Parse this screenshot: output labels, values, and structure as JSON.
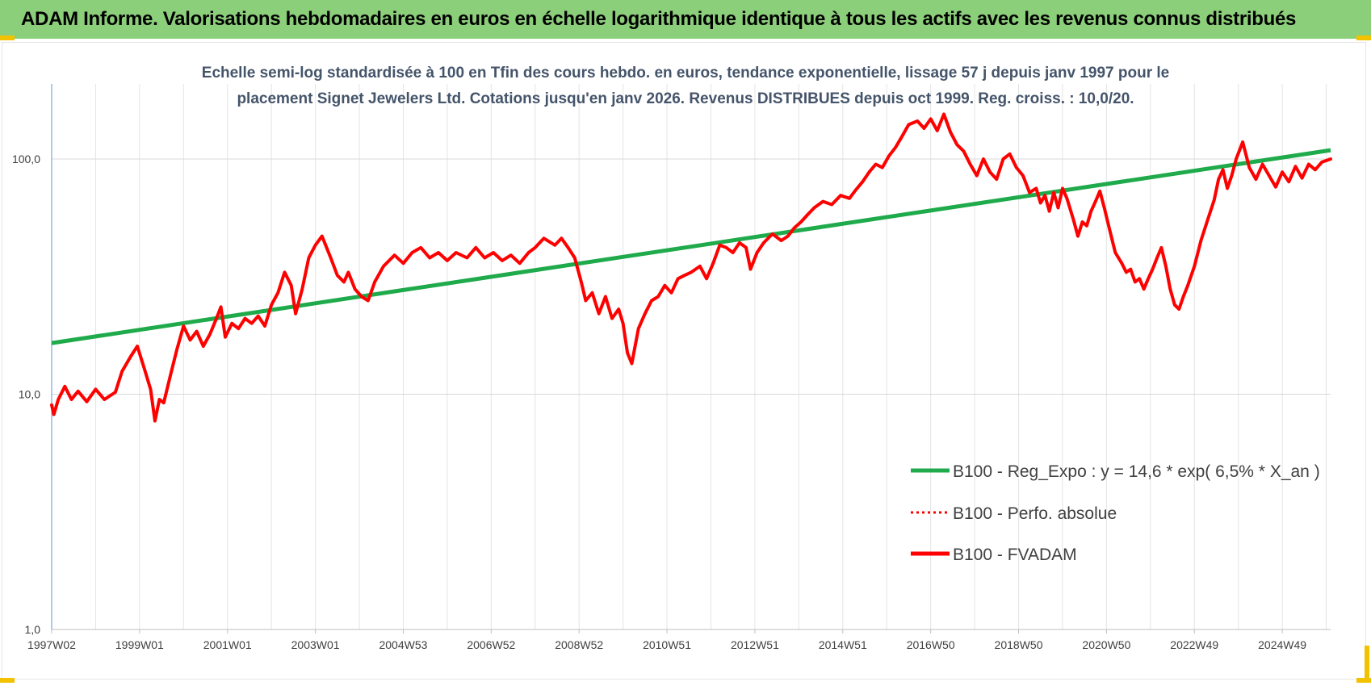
{
  "banner": {
    "title": "ADAM Informe. Valorisations hebdomadaires en euros en échelle logarithmique identique à tous les actifs avec les revenus connus distribués",
    "background": "#8ccf7a"
  },
  "chart_data": {
    "type": "line",
    "title_line1": "Echelle semi-log standardisée à 100 en Tfin des cours hebdo. en euros, tendance exponentielle, lissage 57 j depuis janv 1997 pour le",
    "title_line2": "placement Signet Jewelers Ltd. Cotations jusqu'en janv 2026. Revenus DISTRIBUES depuis oct 1999. Reg. croiss. : 10,0/20.",
    "y_scale": "log",
    "ylim": [
      1,
      200
    ],
    "y_ticks": [
      {
        "value": 1,
        "label": "1,0"
      },
      {
        "value": 10,
        "label": "10,0"
      },
      {
        "value": 100,
        "label": "100,0"
      }
    ],
    "x_range": [
      1997.0,
      2026.1
    ],
    "x_ticks": [
      {
        "year": 1997.0,
        "label": "1997W02"
      },
      {
        "year": 1999.0,
        "label": "1999W01"
      },
      {
        "year": 2001.0,
        "label": "2001W01"
      },
      {
        "year": 2003.0,
        "label": "2003W01"
      },
      {
        "year": 2005.0,
        "label": "2004W53"
      },
      {
        "year": 2007.0,
        "label": "2006W52"
      },
      {
        "year": 2009.0,
        "label": "2008W52"
      },
      {
        "year": 2011.0,
        "label": "2010W51"
      },
      {
        "year": 2013.0,
        "label": "2012W51"
      },
      {
        "year": 2015.0,
        "label": "2014W51"
      },
      {
        "year": 2017.0,
        "label": "2016W50"
      },
      {
        "year": 2019.0,
        "label": "2018W50"
      },
      {
        "year": 2021.0,
        "label": "2020W50"
      },
      {
        "year": 2023.0,
        "label": "2022W49"
      },
      {
        "year": 2025.0,
        "label": "2024W49"
      }
    ],
    "grid": "vertical and horizontal",
    "legend_position": "bottom-right",
    "series": [
      {
        "name": "B100 - Reg_Expo : y = 14,6 * exp( 6,5% *  X_an )",
        "style": "solid",
        "color": "#1faa4b",
        "points": [
          [
            1997.0,
            16.5
          ],
          [
            2026.1,
            109
          ]
        ]
      },
      {
        "name": "B100 - Perfo. absolue",
        "style": "dotted",
        "color": "#ff0000",
        "points": []
      },
      {
        "name": "B100 - FVADAM",
        "style": "solid",
        "color": "#ff0000",
        "points": [
          [
            1997.0,
            9.0
          ],
          [
            1997.05,
            8.2
          ],
          [
            1997.15,
            9.5
          ],
          [
            1997.3,
            10.8
          ],
          [
            1997.45,
            9.5
          ],
          [
            1997.6,
            10.3
          ],
          [
            1997.8,
            9.3
          ],
          [
            1998.0,
            10.5
          ],
          [
            1998.2,
            9.5
          ],
          [
            1998.45,
            10.2
          ],
          [
            1998.6,
            12.5
          ],
          [
            1998.8,
            14.5
          ],
          [
            1998.95,
            16.0
          ],
          [
            1999.1,
            13.0
          ],
          [
            1999.25,
            10.5
          ],
          [
            1999.35,
            7.7
          ],
          [
            1999.45,
            9.5
          ],
          [
            1999.55,
            9.2
          ],
          [
            1999.7,
            12.0
          ],
          [
            1999.85,
            15.5
          ],
          [
            2000.0,
            19.5
          ],
          [
            2000.15,
            17.0
          ],
          [
            2000.3,
            18.5
          ],
          [
            2000.45,
            16.0
          ],
          [
            2000.6,
            18.0
          ],
          [
            2000.75,
            21.0
          ],
          [
            2000.85,
            23.5
          ],
          [
            2000.95,
            17.5
          ],
          [
            2001.1,
            20.0
          ],
          [
            2001.25,
            19.0
          ],
          [
            2001.4,
            21.0
          ],
          [
            2001.55,
            20.0
          ],
          [
            2001.7,
            21.5
          ],
          [
            2001.85,
            19.5
          ],
          [
            2002.0,
            24.0
          ],
          [
            2002.15,
            27.0
          ],
          [
            2002.3,
            33.0
          ],
          [
            2002.45,
            29.0
          ],
          [
            2002.55,
            22.0
          ],
          [
            2002.7,
            28.0
          ],
          [
            2002.85,
            38.0
          ],
          [
            2003.0,
            43.0
          ],
          [
            2003.15,
            47.0
          ],
          [
            2003.35,
            38.0
          ],
          [
            2003.5,
            32.0
          ],
          [
            2003.65,
            30.0
          ],
          [
            2003.75,
            33.0
          ],
          [
            2003.9,
            28.0
          ],
          [
            2004.05,
            26.0
          ],
          [
            2004.2,
            25.0
          ],
          [
            2004.35,
            30.0
          ],
          [
            2004.55,
            35.0
          ],
          [
            2004.8,
            39.0
          ],
          [
            2005.0,
            36.0
          ],
          [
            2005.2,
            40.0
          ],
          [
            2005.4,
            42.0
          ],
          [
            2005.6,
            38.0
          ],
          [
            2005.8,
            40.0
          ],
          [
            2006.0,
            37.0
          ],
          [
            2006.2,
            40.0
          ],
          [
            2006.45,
            38.0
          ],
          [
            2006.65,
            42.0
          ],
          [
            2006.85,
            38.0
          ],
          [
            2007.05,
            40.0
          ],
          [
            2007.25,
            37.0
          ],
          [
            2007.45,
            39.0
          ],
          [
            2007.65,
            36.0
          ],
          [
            2007.85,
            40.0
          ],
          [
            2008.0,
            42.0
          ],
          [
            2008.2,
            46.0
          ],
          [
            2008.45,
            43.0
          ],
          [
            2008.6,
            46.0
          ],
          [
            2008.75,
            42.0
          ],
          [
            2008.9,
            38.0
          ],
          [
            2009.05,
            30.0
          ],
          [
            2009.15,
            25.0
          ],
          [
            2009.3,
            27.0
          ],
          [
            2009.45,
            22.0
          ],
          [
            2009.6,
            26.0
          ],
          [
            2009.75,
            21.0
          ],
          [
            2009.9,
            23.0
          ],
          [
            2010.0,
            20.0
          ],
          [
            2010.1,
            15.0
          ],
          [
            2010.2,
            13.5
          ],
          [
            2010.35,
            19.0
          ],
          [
            2010.5,
            22.0
          ],
          [
            2010.65,
            25.0
          ],
          [
            2010.8,
            26.0
          ],
          [
            2010.95,
            29.0
          ],
          [
            2011.1,
            27.0
          ],
          [
            2011.25,
            31.0
          ],
          [
            2011.4,
            32.0
          ],
          [
            2011.55,
            33.0
          ],
          [
            2011.75,
            35.0
          ],
          [
            2011.9,
            31.0
          ],
          [
            2012.05,
            36.0
          ],
          [
            2012.2,
            43.0
          ],
          [
            2012.35,
            42.0
          ],
          [
            2012.5,
            40.0
          ],
          [
            2012.65,
            44.0
          ],
          [
            2012.8,
            42.0
          ],
          [
            2012.9,
            34.0
          ],
          [
            2013.05,
            40.0
          ],
          [
            2013.2,
            44.0
          ],
          [
            2013.4,
            48.0
          ],
          [
            2013.6,
            45.0
          ],
          [
            2013.75,
            47.0
          ],
          [
            2013.9,
            51.0
          ],
          [
            2014.05,
            54.0
          ],
          [
            2014.2,
            58.0
          ],
          [
            2014.35,
            62.0
          ],
          [
            2014.55,
            66.0
          ],
          [
            2014.75,
            64.0
          ],
          [
            2014.95,
            70.0
          ],
          [
            2015.15,
            68.0
          ],
          [
            2015.3,
            74.0
          ],
          [
            2015.45,
            80.0
          ],
          [
            2015.6,
            88.0
          ],
          [
            2015.75,
            95.0
          ],
          [
            2015.9,
            92.0
          ],
          [
            2016.05,
            103.0
          ],
          [
            2016.2,
            112.0
          ],
          [
            2016.35,
            125.0
          ],
          [
            2016.5,
            140.0
          ],
          [
            2016.7,
            145.0
          ],
          [
            2016.85,
            135.0
          ],
          [
            2017.0,
            148.0
          ],
          [
            2017.15,
            132.0
          ],
          [
            2017.3,
            155.0
          ],
          [
            2017.45,
            130.0
          ],
          [
            2017.6,
            115.0
          ],
          [
            2017.75,
            108.0
          ],
          [
            2017.9,
            95.0
          ],
          [
            2018.05,
            85.0
          ],
          [
            2018.2,
            100.0
          ],
          [
            2018.35,
            88.0
          ],
          [
            2018.5,
            82.0
          ],
          [
            2018.65,
            100.0
          ],
          [
            2018.8,
            105.0
          ],
          [
            2018.95,
            92.0
          ],
          [
            2019.1,
            85.0
          ],
          [
            2019.25,
            72.0
          ],
          [
            2019.4,
            75.0
          ],
          [
            2019.5,
            65.0
          ],
          [
            2019.6,
            70.0
          ],
          [
            2019.7,
            60.0
          ],
          [
            2019.8,
            72.0
          ],
          [
            2019.9,
            62.0
          ],
          [
            2020.0,
            75.0
          ],
          [
            2020.1,
            68.0
          ],
          [
            2020.25,
            55.0
          ],
          [
            2020.35,
            47.0
          ],
          [
            2020.45,
            54.0
          ],
          [
            2020.55,
            52.0
          ],
          [
            2020.65,
            60.0
          ],
          [
            2020.75,
            66.0
          ],
          [
            2020.85,
            73.0
          ],
          [
            2020.95,
            62.0
          ],
          [
            2021.05,
            52.0
          ],
          [
            2021.2,
            40.0
          ],
          [
            2021.35,
            36.0
          ],
          [
            2021.45,
            33.0
          ],
          [
            2021.55,
            34.0
          ],
          [
            2021.65,
            30.0
          ],
          [
            2021.75,
            31.0
          ],
          [
            2021.85,
            28.0
          ],
          [
            2021.95,
            31.0
          ],
          [
            2022.05,
            34.0
          ],
          [
            2022.15,
            38.0
          ],
          [
            2022.25,
            42.0
          ],
          [
            2022.35,
            35.0
          ],
          [
            2022.45,
            28.0
          ],
          [
            2022.55,
            24.0
          ],
          [
            2022.65,
            23.0
          ],
          [
            2022.75,
            26.0
          ],
          [
            2022.85,
            29.0
          ],
          [
            2023.0,
            35.0
          ],
          [
            2023.15,
            45.0
          ],
          [
            2023.3,
            55.0
          ],
          [
            2023.45,
            67.0
          ],
          [
            2023.55,
            82.0
          ],
          [
            2023.65,
            90.0
          ],
          [
            2023.75,
            75.0
          ],
          [
            2023.85,
            85.0
          ],
          [
            2023.95,
            100.0
          ],
          [
            2024.1,
            118.0
          ],
          [
            2024.25,
            92.0
          ],
          [
            2024.4,
            82.0
          ],
          [
            2024.55,
            95.0
          ],
          [
            2024.7,
            85.0
          ],
          [
            2024.85,
            76.0
          ],
          [
            2025.0,
            88.0
          ],
          [
            2025.15,
            80.0
          ],
          [
            2025.3,
            93.0
          ],
          [
            2025.45,
            83.0
          ],
          [
            2025.6,
            95.0
          ],
          [
            2025.75,
            90.0
          ],
          [
            2025.9,
            97.0
          ],
          [
            2026.1,
            100.0
          ]
        ]
      }
    ]
  }
}
